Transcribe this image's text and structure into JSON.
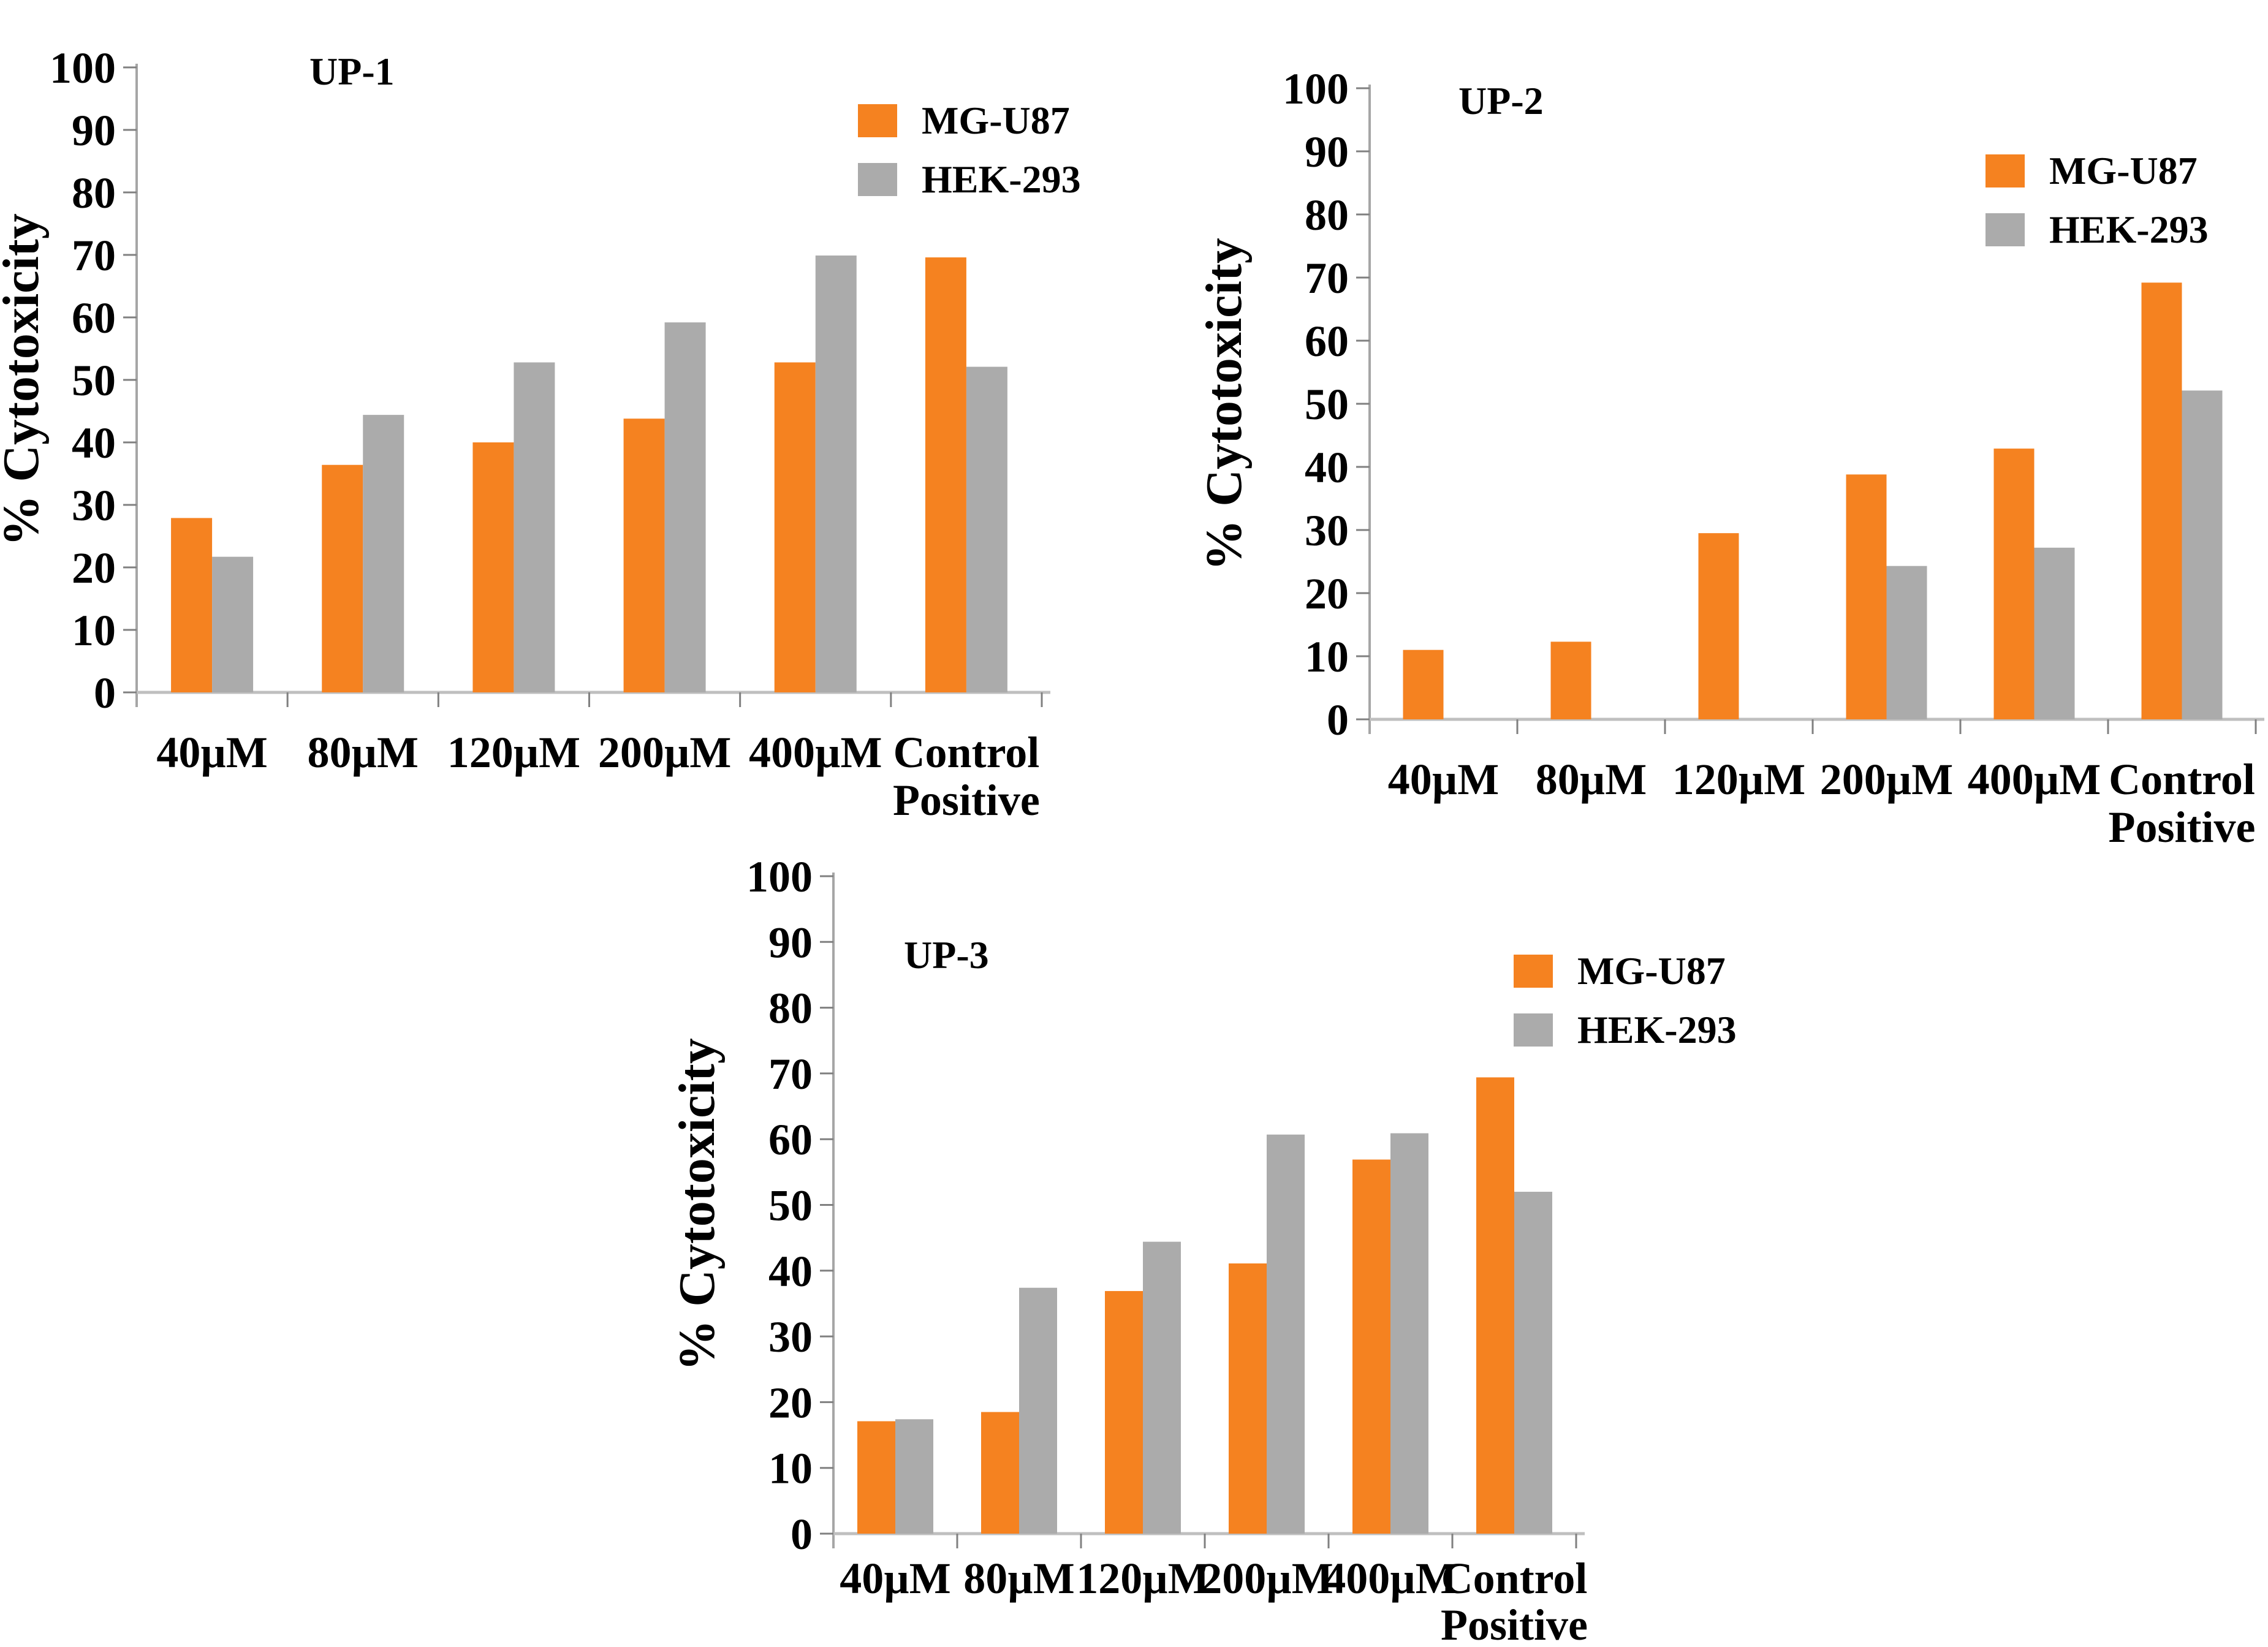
{
  "figure_title": "",
  "colors": {
    "mg_u87": "#F58220",
    "hek_293": "#ABABAB",
    "y_axis_line": "#A6A6A6",
    "baseline": "#BFBFBF",
    "tick_mark": "#808080",
    "text": "#000000",
    "background": "#FFFFFF"
  },
  "axis": {
    "yticks": [
      "0",
      "10",
      "20",
      "30",
      "40",
      "50",
      "60",
      "70",
      "80",
      "90",
      "100"
    ]
  },
  "categories_lines": [
    [
      "40µM"
    ],
    [
      "80µM"
    ],
    [
      "120µM"
    ],
    [
      "200µM"
    ],
    [
      "400µM"
    ],
    [
      "Control",
      "Positive"
    ]
  ],
  "legend": {
    "items": [
      {
        "label": "MG-U87",
        "color_key": "mg_u87"
      },
      {
        "label": "HEK-293",
        "color_key": "hek_293"
      }
    ],
    "position": "inside-top-right"
  },
  "chart_data": [
    {
      "type": "bar",
      "title": "UP-1",
      "ylabel": "% Cytotoxicity",
      "xlabel": "",
      "ylim": [
        0,
        100
      ],
      "ytick_step": 10,
      "grid": false,
      "legend_position": "inside-top-right",
      "categories": [
        "40µM",
        "80µM",
        "120µM",
        "200µM",
        "400µM",
        "Control Positive"
      ],
      "series": [
        {
          "name": "MG-U87",
          "values": [
            27.9,
            36.4,
            40.0,
            43.8,
            52.8,
            69.6
          ]
        },
        {
          "name": "HEK-293",
          "values": [
            21.7,
            44.4,
            52.8,
            59.2,
            69.9,
            52.1
          ]
        }
      ]
    },
    {
      "type": "bar",
      "title": "UP-2",
      "ylabel": "% Cytotoxicity",
      "xlabel": "",
      "ylim": [
        0,
        100
      ],
      "ytick_step": 10,
      "grid": false,
      "legend_position": "inside-top-right",
      "categories": [
        "40µM",
        "80µM",
        "120µM",
        "200µM",
        "400µM",
        "Control Positive"
      ],
      "series": [
        {
          "name": "MG-U87",
          "values": [
            11.0,
            12.3,
            29.5,
            38.8,
            42.9,
            69.2
          ]
        },
        {
          "name": "HEK-293",
          "values": [
            0,
            0,
            0,
            24.3,
            27.2,
            52.1
          ]
        }
      ]
    },
    {
      "type": "bar",
      "title": "UP-3",
      "ylabel": "% Cytotoxicity",
      "xlabel": "",
      "ylim": [
        0,
        100
      ],
      "ytick_step": 10,
      "grid": false,
      "legend_position": "inside-top-right",
      "categories": [
        "40µM",
        "80µM",
        "120µM",
        "200µM",
        "400µM",
        "Control Positive"
      ],
      "series": [
        {
          "name": "MG-U87",
          "values": [
            17.1,
            18.5,
            36.9,
            41.1,
            56.9,
            69.4
          ]
        },
        {
          "name": "HEK-293",
          "values": [
            17.4,
            37.4,
            44.4,
            60.7,
            60.9,
            52.0
          ]
        }
      ]
    }
  ]
}
